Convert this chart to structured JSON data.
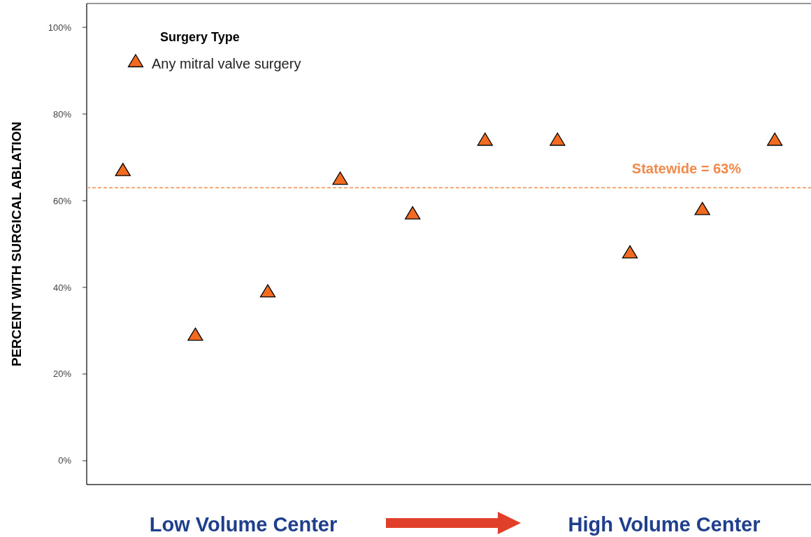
{
  "chart_data": {
    "type": "scatter",
    "ylabel": "PERCENT WITH SURGICAL ABLATION",
    "legend_title": "Surgery Type",
    "categories": [
      null,
      null,
      null,
      null,
      null,
      null,
      null,
      null,
      null,
      null
    ],
    "series": [
      {
        "name": "Any mitral valve surgery",
        "color": "#f26b21",
        "values": [
          67,
          29,
          39,
          65,
          57,
          74,
          74,
          48,
          58,
          74
        ]
      }
    ],
    "ylim": [
      -5.5,
      105.5
    ],
    "yticks": [
      {
        "value": 0,
        "label": "0%"
      },
      {
        "value": 20,
        "label": "20%"
      },
      {
        "value": 40,
        "label": "40%"
      },
      {
        "value": 60,
        "label": "60%"
      },
      {
        "value": 80,
        "label": "80%"
      },
      {
        "value": 100,
        "label": "100%"
      }
    ],
    "ref_lines": [
      {
        "axis": "y",
        "value": 63,
        "label": "Statewide = 63%",
        "color": "#f08a4b",
        "line_style": "dashed"
      }
    ],
    "annotations": [
      "Low Volume Center",
      "High Volume Center"
    ],
    "marker": "triangle",
    "legend": "top left",
    "grid": false
  }
}
